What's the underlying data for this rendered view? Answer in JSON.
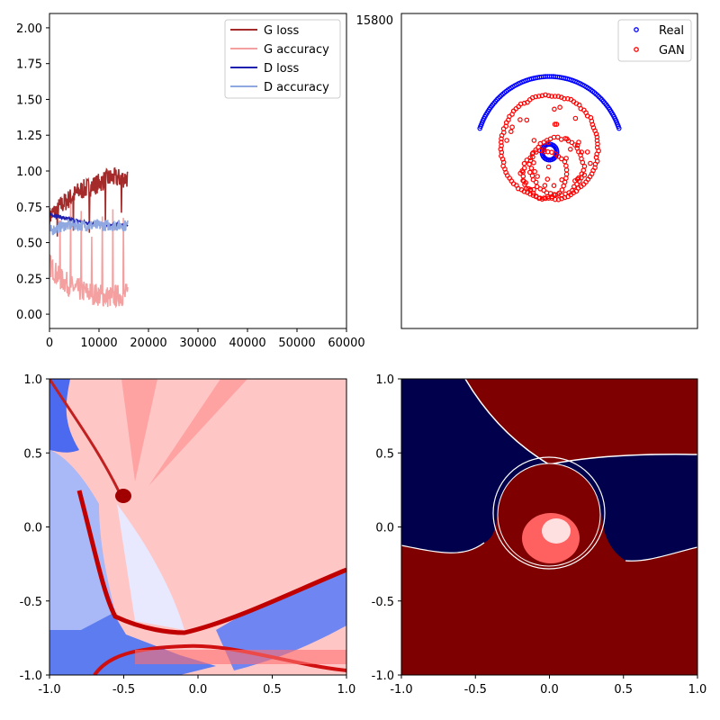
{
  "figure": {
    "step_label": "15800"
  },
  "colors": {
    "g_loss": "#a52a2a",
    "g_accuracy": "#f4a0a0",
    "d_loss": "#2020b0",
    "d_accuracy": "#90a8e0",
    "real_marker": "#0000ff",
    "gan_marker": "#ff0000",
    "map_low": "#00004c",
    "map_high": "#7f0000"
  },
  "chart_data": [
    {
      "type": "line",
      "xlim": [
        0,
        60000
      ],
      "ylim": [
        -0.1,
        2.1
      ],
      "xticks": [
        0,
        10000,
        20000,
        30000,
        40000,
        50000,
        60000
      ],
      "xtick_labels": [
        "0",
        "10000",
        "20000",
        "30000",
        "40000",
        "50000",
        "60000"
      ],
      "yticks": [
        0.0,
        0.25,
        0.5,
        0.75,
        1.0,
        1.25,
        1.5,
        1.75,
        2.0
      ],
      "ytick_labels": [
        "0.00",
        "0.25",
        "0.50",
        "0.75",
        "1.00",
        "1.25",
        "1.50",
        "1.75",
        "2.00"
      ],
      "legend": "top-right",
      "x_end": 15800,
      "series": [
        {
          "name": "G loss",
          "color_key": "g_loss",
          "levels": [
            [
              0,
              0.68
            ],
            [
              3000,
              0.78
            ],
            [
              6000,
              0.86
            ],
            [
              9000,
              0.9
            ],
            [
              12000,
              0.95
            ],
            [
              15800,
              0.95
            ]
          ],
          "noise": 0.07
        },
        {
          "name": "G accuracy",
          "color_key": "g_accuracy",
          "levels": [
            [
              0,
              0.35
            ],
            [
              2000,
              0.25
            ],
            [
              5000,
              0.18
            ],
            [
              8000,
              0.15
            ],
            [
              12000,
              0.12
            ],
            [
              15800,
              0.14
            ]
          ],
          "noise": 0.08
        },
        {
          "name": "D loss",
          "color_key": "d_loss",
          "levels": [
            [
              0,
              0.7
            ],
            [
              3000,
              0.67
            ],
            [
              7000,
              0.64
            ],
            [
              12000,
              0.62
            ],
            [
              15800,
              0.62
            ]
          ],
          "noise": 0.012
        },
        {
          "name": "D accuracy",
          "color_key": "d_accuracy",
          "levels": [
            [
              0,
              0.58
            ],
            [
              3000,
              0.62
            ],
            [
              7000,
              0.62
            ],
            [
              12000,
              0.62
            ],
            [
              15800,
              0.62
            ]
          ],
          "noise": 0.04
        }
      ]
    },
    {
      "type": "scatter",
      "xlim": [
        -1,
        1
      ],
      "ylim": [
        -1,
        1
      ],
      "axes_ticks": false,
      "legend": "top-right",
      "series": [
        {
          "name": "Real",
          "color_key": "real_marker",
          "marker": "open-circle",
          "shape": "arc",
          "center": [
            0,
            0.1
          ],
          "radius": 0.5,
          "start_deg": 20,
          "end_deg": 160,
          "count": 90
        },
        {
          "name": "GAN",
          "color_key": "gan_marker",
          "marker": "open-circle",
          "circles": [
            {
              "center": [
                0.0,
                0.15
              ],
              "radius": 0.33,
              "count": 95
            },
            {
              "center": [
                0.05,
                0.03
              ],
              "radius": 0.18,
              "count": 45
            },
            {
              "center": [
                -0.03,
                -0.02
              ],
              "radius": 0.15,
              "count": 35
            }
          ],
          "scatter_count": 40
        }
      ]
    },
    {
      "type": "heatmap",
      "xlim": [
        -1,
        1
      ],
      "ylim": [
        -1,
        1
      ],
      "ticks": [
        -1.0,
        -0.5,
        0.0,
        0.5,
        1.0
      ],
      "tick_labels": [
        "-1.0",
        "-0.5",
        "0.0",
        "0.5",
        "1.0"
      ],
      "colormap": "bwr"
    },
    {
      "type": "heatmap",
      "xlim": [
        -1,
        1
      ],
      "ylim": [
        -1,
        1
      ],
      "ticks": [
        -1.0,
        -0.5,
        0.0,
        0.5,
        1.0
      ],
      "tick_labels": [
        "-1.0",
        "-0.5",
        "0.0",
        "0.5",
        "1.0"
      ],
      "colormap": "seismic"
    }
  ]
}
